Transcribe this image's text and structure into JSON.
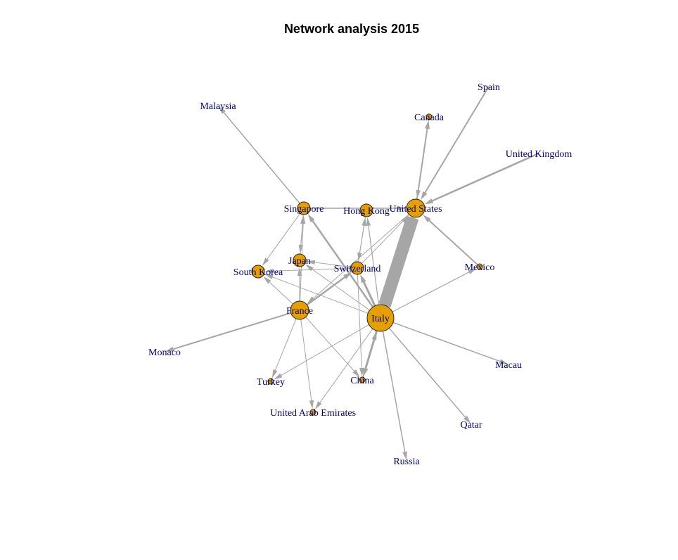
{
  "title": "Network analysis 2015",
  "colors": {
    "node_fill": "#e69f00",
    "node_border": "#222222",
    "edge": "#a6a6a6",
    "label": "#00007a"
  },
  "nodes": [
    {
      "id": "italy",
      "label": "Italy",
      "degree": "large"
    },
    {
      "id": "us",
      "label": "United States",
      "degree": "medium"
    },
    {
      "id": "france",
      "label": "France",
      "degree": "medium"
    },
    {
      "id": "switzerland",
      "label": "Switzerland",
      "degree": "small"
    },
    {
      "id": "singapore",
      "label": "Singapore",
      "degree": "small"
    },
    {
      "id": "japan",
      "label": "Japan",
      "degree": "small"
    },
    {
      "id": "southkorea",
      "label": "South Korea",
      "degree": "small"
    },
    {
      "id": "hongkong",
      "label": "Hong Kong",
      "degree": "small"
    },
    {
      "id": "china",
      "label": "China",
      "degree": "tiny"
    },
    {
      "id": "malaysia",
      "label": "Malaysia",
      "degree": "none"
    },
    {
      "id": "canada",
      "label": "Canada",
      "degree": "tiny"
    },
    {
      "id": "spain",
      "label": "Spain",
      "degree": "none"
    },
    {
      "id": "uk",
      "label": "United Kingdom",
      "degree": "none"
    },
    {
      "id": "mexico",
      "label": "Mexico",
      "degree": "tiny"
    },
    {
      "id": "monaco",
      "label": "Monaco",
      "degree": "none"
    },
    {
      "id": "turkey",
      "label": "Turkey",
      "degree": "tiny"
    },
    {
      "id": "uae",
      "label": "United Arab Emirates",
      "degree": "tiny"
    },
    {
      "id": "macau",
      "label": "Macau",
      "degree": "none"
    },
    {
      "id": "qatar",
      "label": "Qatar",
      "degree": "none"
    },
    {
      "id": "russia",
      "label": "Russia",
      "degree": "none"
    }
  ],
  "edges": [
    {
      "from": "italy",
      "to": "us",
      "weight": 18
    },
    {
      "from": "italy",
      "to": "switzerland",
      "weight": 3
    },
    {
      "from": "italy",
      "to": "china",
      "weight": 3
    },
    {
      "from": "china",
      "to": "italy",
      "weight": 2
    },
    {
      "from": "italy",
      "to": "singapore",
      "weight": 2.5
    },
    {
      "from": "italy",
      "to": "hongkong",
      "weight": 1.2
    },
    {
      "from": "italy",
      "to": "mexico",
      "weight": 1.2
    },
    {
      "from": "italy",
      "to": "macau",
      "weight": 1.5
    },
    {
      "from": "italy",
      "to": "qatar",
      "weight": 1.5
    },
    {
      "from": "italy",
      "to": "russia",
      "weight": 1.5
    },
    {
      "from": "italy",
      "to": "uae",
      "weight": 1
    },
    {
      "from": "italy",
      "to": "turkey",
      "weight": 1
    },
    {
      "from": "italy",
      "to": "southkorea",
      "weight": 1
    },
    {
      "from": "italy",
      "to": "japan",
      "weight": 1
    },
    {
      "from": "france",
      "to": "monaco",
      "weight": 2
    },
    {
      "from": "france",
      "to": "switzerland",
      "weight": 2.5
    },
    {
      "from": "france",
      "to": "singapore",
      "weight": 1
    },
    {
      "from": "france",
      "to": "japan",
      "weight": 1
    },
    {
      "from": "france",
      "to": "turkey",
      "weight": 1
    },
    {
      "from": "france",
      "to": "uae",
      "weight": 1
    },
    {
      "from": "france",
      "to": "china",
      "weight": 1
    },
    {
      "from": "france",
      "to": "southkorea",
      "weight": 1
    },
    {
      "from": "switzerland",
      "to": "hongkong",
      "weight": 1
    },
    {
      "from": "switzerland",
      "to": "japan",
      "weight": 1
    },
    {
      "from": "switzerland",
      "to": "southkorea",
      "weight": 1
    },
    {
      "from": "switzerland",
      "to": "us",
      "weight": 1
    },
    {
      "from": "switzerland",
      "to": "china",
      "weight": 1
    },
    {
      "from": "singapore",
      "to": "malaysia",
      "weight": 1.5
    },
    {
      "from": "singapore",
      "to": "us",
      "weight": 1.5
    },
    {
      "from": "singapore",
      "to": "japan",
      "weight": 1
    },
    {
      "from": "singapore",
      "to": "southkorea",
      "weight": 1
    },
    {
      "from": "japan",
      "to": "singapore",
      "weight": 1
    },
    {
      "from": "us",
      "to": "canada",
      "weight": 2
    },
    {
      "from": "canada",
      "to": "us",
      "weight": 1
    },
    {
      "from": "spain",
      "to": "us",
      "weight": 2
    },
    {
      "from": "uk",
      "to": "us",
      "weight": 2.5
    },
    {
      "from": "mexico",
      "to": "us",
      "weight": 2
    },
    {
      "from": "us",
      "to": "france",
      "weight": 1
    },
    {
      "from": "hongkong",
      "to": "switzerland",
      "weight": 1
    }
  ]
}
